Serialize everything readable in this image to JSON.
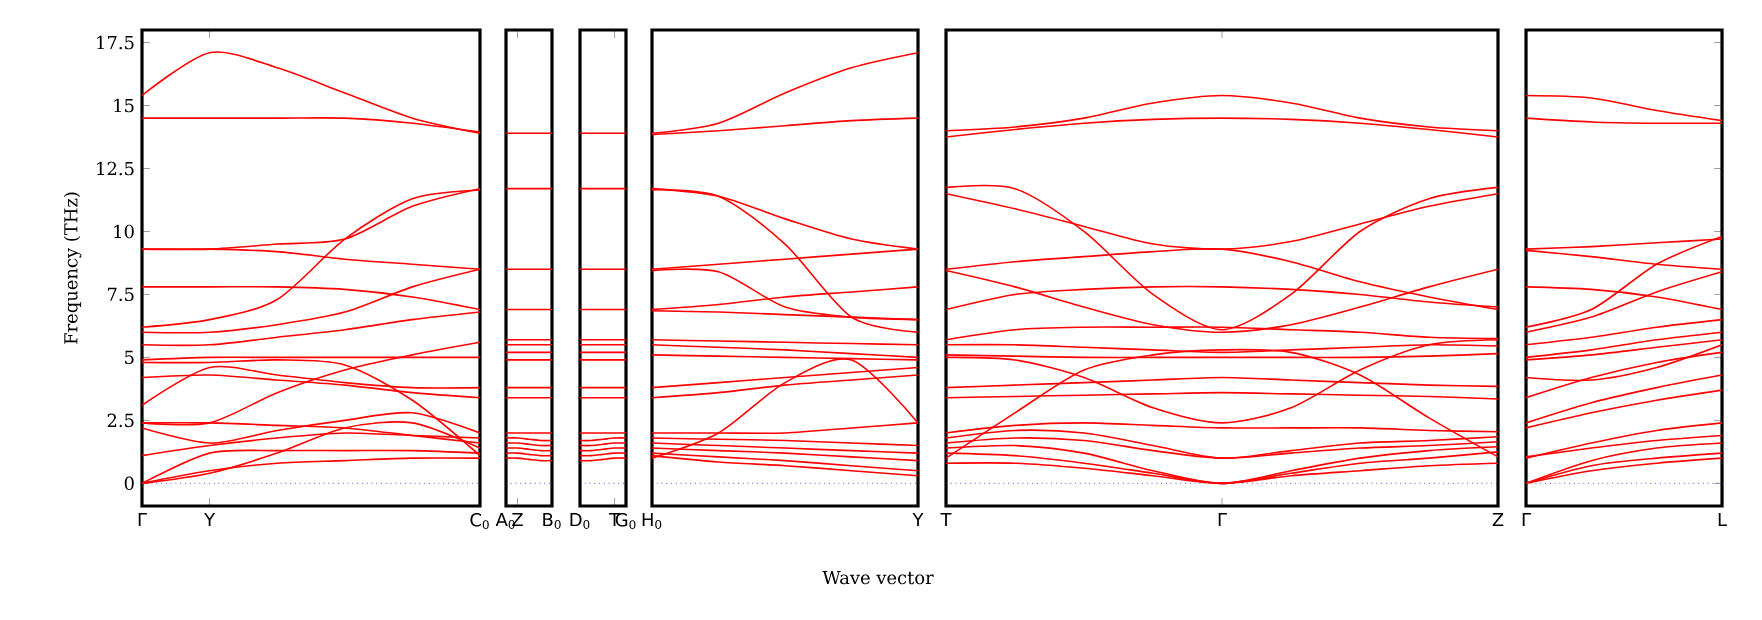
{
  "chart_data": [
    {
      "type": "line",
      "ylabel": "Frequency (THz)",
      "categories": [
        "Γ",
        "Y",
        null,
        null,
        null,
        "C$_{0}$"
      ],
      "ylim": [
        -0.9,
        18
      ],
      "yticks": [
        0,
        2.5,
        5,
        7.5,
        10,
        12.5,
        15,
        17.5
      ],
      "ref_lines": [
        {
          "axis": "y",
          "value": 0,
          "color": "#0000ff",
          "line_style": "dotted"
        }
      ],
      "series": [
        {
          "color": "#ff0000",
          "values": [
            15.4,
            17.1,
            16.5,
            15.5,
            14.5,
            13.9
          ]
        },
        {
          "color": "#ff0000",
          "values": [
            14.5,
            14.5,
            14.5,
            14.5,
            14.3,
            13.95
          ]
        },
        {
          "color": "#ff0000",
          "values": [
            9.3,
            9.3,
            9.5,
            9.7,
            11.0,
            11.7
          ]
        },
        {
          "color": "#ff0000",
          "values": [
            6.2,
            6.5,
            7.3,
            9.7,
            11.3,
            11.65
          ]
        },
        {
          "color": "#ff0000",
          "values": [
            9.3,
            9.3,
            9.2,
            8.9,
            8.7,
            8.5
          ]
        },
        {
          "color": "#ff0000",
          "values": [
            7.8,
            7.8,
            7.8,
            7.7,
            7.4,
            6.9
          ]
        },
        {
          "color": "#ff0000",
          "values": [
            6.0,
            6.0,
            6.3,
            6.8,
            7.8,
            8.5
          ]
        },
        {
          "color": "#ff0000",
          "values": [
            5.5,
            5.5,
            5.8,
            6.1,
            6.5,
            6.8
          ]
        },
        {
          "color": "#ff0000",
          "values": [
            4.9,
            5.0,
            5.0,
            5.0,
            5.0,
            5.0
          ]
        },
        {
          "color": "#ff0000",
          "values": [
            4.2,
            4.3,
            4.1,
            3.9,
            3.6,
            3.4
          ]
        },
        {
          "color": "#ff0000",
          "values": [
            3.1,
            4.6,
            4.3,
            4.0,
            3.8,
            3.8
          ]
        },
        {
          "color": "#ff0000",
          "values": [
            2.4,
            2.4,
            3.6,
            4.5,
            5.1,
            5.6
          ]
        },
        {
          "color": "#ff0000",
          "values": [
            4.8,
            4.8,
            4.9,
            4.7,
            3.3,
            1.1
          ]
        },
        {
          "color": "#ff0000",
          "values": [
            2.2,
            1.6,
            2.1,
            2.5,
            2.8,
            2.0
          ]
        },
        {
          "color": "#ff0000",
          "values": [
            1.1,
            1.5,
            1.8,
            2.0,
            1.9,
            1.8
          ]
        },
        {
          "color": "#ff0000",
          "values": [
            0,
            0.4,
            1.2,
            2.2,
            2.4,
            1.4
          ]
        },
        {
          "color": "#ff0000",
          "values": [
            0,
            1.2,
            1.3,
            1.3,
            1.3,
            1.2
          ]
        },
        {
          "color": "#ff0000",
          "values": [
            0,
            0.5,
            0.8,
            0.9,
            1.0,
            1.0
          ]
        },
        {
          "color": "#ff0000",
          "values": [
            2.4,
            2.4,
            2.3,
            2.2,
            1.9,
            1.6
          ]
        }
      ]
    },
    {
      "type": "line",
      "categories": [
        "A$_{0}$",
        "Z",
        null,
        null,
        "B$_{0}$"
      ],
      "ylim": [
        -0.9,
        18
      ],
      "yticks": [
        0,
        2.5,
        5,
        7.5,
        10,
        12.5,
        15,
        17.5
      ],
      "tick_labels": "x",
      "ref_lines": [
        {
          "axis": "y",
          "value": 0,
          "color": "#0000ff",
          "line_style": "dotted"
        }
      ],
      "series": [
        {
          "color": "#ff0000",
          "values": [
            13.9,
            13.9,
            13.9,
            13.9,
            13.9
          ]
        },
        {
          "color": "#ff0000",
          "values": [
            11.7,
            11.7,
            11.7,
            11.7,
            11.7
          ]
        },
        {
          "color": "#ff0000",
          "values": [
            8.5,
            8.5,
            8.5,
            8.5,
            8.5
          ]
        },
        {
          "color": "#ff0000",
          "values": [
            6.9,
            6.9,
            6.9,
            6.9,
            6.9
          ]
        },
        {
          "color": "#ff0000",
          "values": [
            5.7,
            5.7,
            5.7,
            5.7,
            5.7
          ]
        },
        {
          "color": "#ff0000",
          "values": [
            5.5,
            5.5,
            5.5,
            5.5,
            5.5
          ]
        },
        {
          "color": "#ff0000",
          "values": [
            5.2,
            5.2,
            5.2,
            5.2,
            5.2
          ]
        },
        {
          "color": "#ff0000",
          "values": [
            4.9,
            4.9,
            4.9,
            4.9,
            4.9
          ]
        },
        {
          "color": "#ff0000",
          "values": [
            3.8,
            3.8,
            3.8,
            3.8,
            3.8
          ]
        },
        {
          "color": "#ff0000",
          "values": [
            3.4,
            3.4,
            3.4,
            3.4,
            3.4
          ]
        },
        {
          "color": "#ff0000",
          "values": [
            2.0,
            2.0,
            2.0,
            2.0,
            2.0
          ]
        },
        {
          "color": "#ff0000",
          "values": [
            1.8,
            1.8,
            1.75,
            1.7,
            1.7
          ]
        },
        {
          "color": "#ff0000",
          "values": [
            1.6,
            1.6,
            1.55,
            1.5,
            1.5
          ]
        },
        {
          "color": "#ff0000",
          "values": [
            1.4,
            1.4,
            1.35,
            1.3,
            1.3
          ]
        },
        {
          "color": "#ff0000",
          "values": [
            1.2,
            1.2,
            1.15,
            1.1,
            1.1
          ]
        },
        {
          "color": "#ff0000",
          "values": [
            1.0,
            1.0,
            0.95,
            0.9,
            0.9
          ]
        }
      ]
    },
    {
      "type": "line",
      "categories": [
        "D$_{0}$",
        null,
        null,
        "T",
        "G$_{0}$"
      ],
      "ylim": [
        -0.9,
        18
      ],
      "yticks": [
        0,
        2.5,
        5,
        7.5,
        10,
        12.5,
        15,
        17.5
      ],
      "tick_labels": "x",
      "ref_lines": [
        {
          "axis": "y",
          "value": 0,
          "color": "#0000ff",
          "line_style": "dotted"
        }
      ],
      "series": [
        {
          "color": "#ff0000",
          "values": [
            13.9,
            13.9,
            13.9,
            13.9,
            13.9
          ]
        },
        {
          "color": "#ff0000",
          "values": [
            11.7,
            11.7,
            11.7,
            11.7,
            11.7
          ]
        },
        {
          "color": "#ff0000",
          "values": [
            8.5,
            8.5,
            8.5,
            8.5,
            8.5
          ]
        },
        {
          "color": "#ff0000",
          "values": [
            6.9,
            6.9,
            6.9,
            6.9,
            6.9
          ]
        },
        {
          "color": "#ff0000",
          "values": [
            5.7,
            5.7,
            5.7,
            5.7,
            5.7
          ]
        },
        {
          "color": "#ff0000",
          "values": [
            5.5,
            5.5,
            5.5,
            5.5,
            5.5
          ]
        },
        {
          "color": "#ff0000",
          "values": [
            5.2,
            5.2,
            5.2,
            5.2,
            5.2
          ]
        },
        {
          "color": "#ff0000",
          "values": [
            4.9,
            4.9,
            4.9,
            4.9,
            4.9
          ]
        },
        {
          "color": "#ff0000",
          "values": [
            3.8,
            3.8,
            3.8,
            3.8,
            3.8
          ]
        },
        {
          "color": "#ff0000",
          "values": [
            3.4,
            3.4,
            3.4,
            3.4,
            3.4
          ]
        },
        {
          "color": "#ff0000",
          "values": [
            2.0,
            2.0,
            2.0,
            2.0,
            2.0
          ]
        },
        {
          "color": "#ff0000",
          "values": [
            1.7,
            1.7,
            1.75,
            1.8,
            1.8
          ]
        },
        {
          "color": "#ff0000",
          "values": [
            1.5,
            1.5,
            1.55,
            1.6,
            1.6
          ]
        },
        {
          "color": "#ff0000",
          "values": [
            1.3,
            1.3,
            1.35,
            1.4,
            1.4
          ]
        },
        {
          "color": "#ff0000",
          "values": [
            1.1,
            1.1,
            1.15,
            1.2,
            1.2
          ]
        },
        {
          "color": "#ff0000",
          "values": [
            0.9,
            0.9,
            0.95,
            1.0,
            1.0
          ]
        }
      ]
    },
    {
      "type": "line",
      "xlabel": "Wave vector",
      "categories": [
        "H$_{0}$",
        null,
        null,
        null,
        "Y"
      ],
      "ylim": [
        -0.9,
        18
      ],
      "yticks": [
        0,
        2.5,
        5,
        7.5,
        10,
        12.5,
        15,
        17.5
      ],
      "tick_labels": "x",
      "ref_lines": [
        {
          "axis": "y",
          "value": 0,
          "color": "#0000ff",
          "line_style": "dotted"
        }
      ],
      "series": [
        {
          "color": "#ff0000",
          "values": [
            13.9,
            14.3,
            15.5,
            16.5,
            17.1
          ]
        },
        {
          "color": "#ff0000",
          "values": [
            13.85,
            14.0,
            14.2,
            14.4,
            14.5
          ]
        },
        {
          "color": "#ff0000",
          "values": [
            11.7,
            11.4,
            10.5,
            9.7,
            9.3
          ]
        },
        {
          "color": "#ff0000",
          "values": [
            11.65,
            11.4,
            9.5,
            6.6,
            6.0
          ]
        },
        {
          "color": "#ff0000",
          "values": [
            8.5,
            8.7,
            8.9,
            9.1,
            9.3
          ]
        },
        {
          "color": "#ff0000",
          "values": [
            8.45,
            8.4,
            7.0,
            6.6,
            6.5
          ]
        },
        {
          "color": "#ff0000",
          "values": [
            6.9,
            7.1,
            7.4,
            7.6,
            7.8
          ]
        },
        {
          "color": "#ff0000",
          "values": [
            6.85,
            6.8,
            6.7,
            6.6,
            6.5
          ]
        },
        {
          "color": "#ff0000",
          "values": [
            5.7,
            5.65,
            5.6,
            5.55,
            5.5
          ]
        },
        {
          "color": "#ff0000",
          "values": [
            5.5,
            5.4,
            5.3,
            5.15,
            5.0
          ]
        },
        {
          "color": "#ff0000",
          "values": [
            5.1,
            5.05,
            5.0,
            4.95,
            4.9
          ]
        },
        {
          "color": "#ff0000",
          "values": [
            3.8,
            4.0,
            4.2,
            4.4,
            4.6
          ]
        },
        {
          "color": "#ff0000",
          "values": [
            3.4,
            3.6,
            3.9,
            4.1,
            4.3
          ]
        },
        {
          "color": "#ff0000",
          "values": [
            1.0,
            2.0,
            4.0,
            4.9,
            2.4
          ]
        },
        {
          "color": "#ff0000",
          "values": [
            2.0,
            2.0,
            2.0,
            2.2,
            2.4
          ]
        },
        {
          "color": "#ff0000",
          "values": [
            1.8,
            1.75,
            1.7,
            1.6,
            1.5
          ]
        },
        {
          "color": "#ff0000",
          "values": [
            1.6,
            1.5,
            1.4,
            1.3,
            1.2
          ]
        },
        {
          "color": "#ff0000",
          "values": [
            1.4,
            1.3,
            1.2,
            1.05,
            0.9
          ]
        },
        {
          "color": "#ff0000",
          "values": [
            1.2,
            1.05,
            0.9,
            0.7,
            0.5
          ]
        },
        {
          "color": "#ff0000",
          "values": [
            1.1,
            0.85,
            0.7,
            0.5,
            0.3
          ]
        }
      ]
    },
    {
      "type": "line",
      "categories": [
        "T",
        null,
        null,
        null,
        "Γ",
        null,
        null,
        null,
        "Z"
      ],
      "ylim": [
        -0.9,
        18
      ],
      "yticks": [
        0,
        2.5,
        5,
        7.5,
        10,
        12.5,
        15,
        17.5
      ],
      "tick_labels": "x",
      "ref_lines": [
        {
          "axis": "y",
          "value": 0,
          "color": "#0000ff",
          "line_style": "dotted"
        }
      ],
      "series": [
        {
          "color": "#ff0000",
          "values": [
            14.0,
            14.15,
            14.5,
            15.1,
            15.4,
            15.1,
            14.5,
            14.15,
            14.0
          ]
        },
        {
          "color": "#ff0000",
          "values": [
            13.75,
            14.05,
            14.3,
            14.45,
            14.5,
            14.45,
            14.3,
            14.05,
            13.75
          ]
        },
        {
          "color": "#ff0000",
          "values": [
            11.75,
            11.7,
            10.0,
            7.5,
            6.1,
            7.5,
            10.0,
            11.3,
            11.75
          ]
        },
        {
          "color": "#ff0000",
          "values": [
            11.5,
            10.9,
            10.2,
            9.5,
            9.3,
            9.6,
            10.3,
            11.0,
            11.5
          ]
        },
        {
          "color": "#ff0000",
          "values": [
            8.5,
            8.8,
            9.0,
            9.2,
            9.3,
            8.8,
            8.0,
            7.4,
            6.9
          ]
        },
        {
          "color": "#ff0000",
          "values": [
            8.45,
            7.8,
            7.0,
            6.3,
            6.0,
            6.3,
            7.0,
            7.8,
            8.5
          ]
        },
        {
          "color": "#ff0000",
          "values": [
            6.9,
            7.5,
            7.7,
            7.8,
            7.8,
            7.7,
            7.5,
            7.2,
            7.0
          ]
        },
        {
          "color": "#ff0000",
          "values": [
            5.7,
            6.1,
            6.2,
            6.2,
            6.2,
            6.1,
            6.0,
            5.8,
            5.75
          ]
        },
        {
          "color": "#ff0000",
          "values": [
            5.5,
            5.5,
            5.4,
            5.3,
            5.2,
            5.3,
            5.4,
            5.5,
            5.45
          ]
        },
        {
          "color": "#ff0000",
          "values": [
            5.1,
            5.05,
            5.0,
            5.0,
            5.0,
            5.0,
            5.0,
            5.05,
            5.15
          ]
        },
        {
          "color": "#ff0000",
          "values": [
            3.8,
            3.9,
            4.0,
            4.1,
            4.2,
            4.1,
            4.0,
            3.9,
            3.85
          ]
        },
        {
          "color": "#ff0000",
          "values": [
            3.4,
            3.45,
            3.5,
            3.55,
            3.6,
            3.55,
            3.5,
            3.45,
            3.35
          ]
        },
        {
          "color": "#ff0000",
          "values": [
            1.0,
            2.8,
            4.5,
            5.1,
            5.3,
            5.2,
            4.3,
            2.6,
            1.05
          ]
        },
        {
          "color": "#ff0000",
          "values": [
            5.0,
            4.9,
            4.2,
            3.0,
            2.4,
            3.0,
            4.5,
            5.5,
            5.7
          ]
        },
        {
          "color": "#ff0000",
          "values": [
            2.0,
            2.3,
            2.4,
            2.3,
            2.2,
            2.2,
            2.2,
            2.1,
            2.05
          ]
        },
        {
          "color": "#ff0000",
          "values": [
            1.8,
            2.1,
            2.0,
            1.5,
            1.0,
            1.3,
            1.6,
            1.7,
            1.85
          ]
        },
        {
          "color": "#ff0000",
          "values": [
            1.6,
            1.8,
            1.7,
            1.3,
            1.0,
            1.2,
            1.4,
            1.5,
            1.65
          ]
        },
        {
          "color": "#ff0000",
          "values": [
            1.4,
            1.5,
            1.2,
            0.5,
            0,
            0.5,
            1.0,
            1.3,
            1.45
          ]
        },
        {
          "color": "#ff0000",
          "values": [
            1.2,
            1.1,
            0.8,
            0.4,
            0,
            0.4,
            0.8,
            1.0,
            1.25
          ]
        },
        {
          "color": "#ff0000",
          "values": [
            0.8,
            0.8,
            0.6,
            0.3,
            0,
            0.3,
            0.5,
            0.7,
            0.8
          ]
        }
      ]
    },
    {
      "type": "line",
      "categories": [
        "Γ",
        null,
        null,
        "L"
      ],
      "ylim": [
        -0.9,
        18
      ],
      "yticks": [
        0,
        2.5,
        5,
        7.5,
        10,
        12.5,
        15,
        17.5
      ],
      "tick_labels": "x",
      "ref_lines": [
        {
          "axis": "y",
          "value": 0,
          "color": "#0000ff",
          "line_style": "dotted"
        }
      ],
      "series": [
        {
          "color": "#ff0000",
          "values": [
            15.4,
            15.3,
            14.8,
            14.4
          ]
        },
        {
          "color": "#ff0000",
          "values": [
            14.5,
            14.35,
            14.3,
            14.3
          ]
        },
        {
          "color": "#ff0000",
          "values": [
            9.3,
            9.4,
            9.55,
            9.7
          ]
        },
        {
          "color": "#ff0000",
          "values": [
            9.25,
            9.0,
            8.7,
            8.5
          ]
        },
        {
          "color": "#ff0000",
          "values": [
            7.8,
            7.7,
            7.4,
            6.9
          ]
        },
        {
          "color": "#ff0000",
          "values": [
            6.2,
            6.9,
            8.7,
            9.8
          ]
        },
        {
          "color": "#ff0000",
          "values": [
            6.0,
            6.6,
            7.6,
            8.4
          ]
        },
        {
          "color": "#ff0000",
          "values": [
            5.5,
            5.8,
            6.2,
            6.5
          ]
        },
        {
          "color": "#ff0000",
          "values": [
            5.0,
            5.3,
            5.7,
            6.0
          ]
        },
        {
          "color": "#ff0000",
          "values": [
            4.9,
            5.1,
            5.4,
            5.7
          ]
        },
        {
          "color": "#ff0000",
          "values": [
            4.2,
            4.1,
            4.6,
            5.5
          ]
        },
        {
          "color": "#ff0000",
          "values": [
            3.4,
            4.2,
            4.8,
            5.2
          ]
        },
        {
          "color": "#ff0000",
          "values": [
            2.4,
            3.2,
            3.8,
            4.3
          ]
        },
        {
          "color": "#ff0000",
          "values": [
            2.2,
            2.8,
            3.3,
            3.7
          ]
        },
        {
          "color": "#ff0000",
          "values": [
            1.0,
            1.6,
            2.1,
            2.4
          ]
        },
        {
          "color": "#ff0000",
          "values": [
            1.05,
            1.4,
            1.7,
            1.9
          ]
        },
        {
          "color": "#ff0000",
          "values": [
            0,
            0.9,
            1.4,
            1.6
          ]
        },
        {
          "color": "#ff0000",
          "values": [
            0,
            0.7,
            1.0,
            1.2
          ]
        },
        {
          "color": "#ff0000",
          "values": [
            0,
            0.5,
            0.8,
            1.0
          ]
        }
      ]
    }
  ]
}
